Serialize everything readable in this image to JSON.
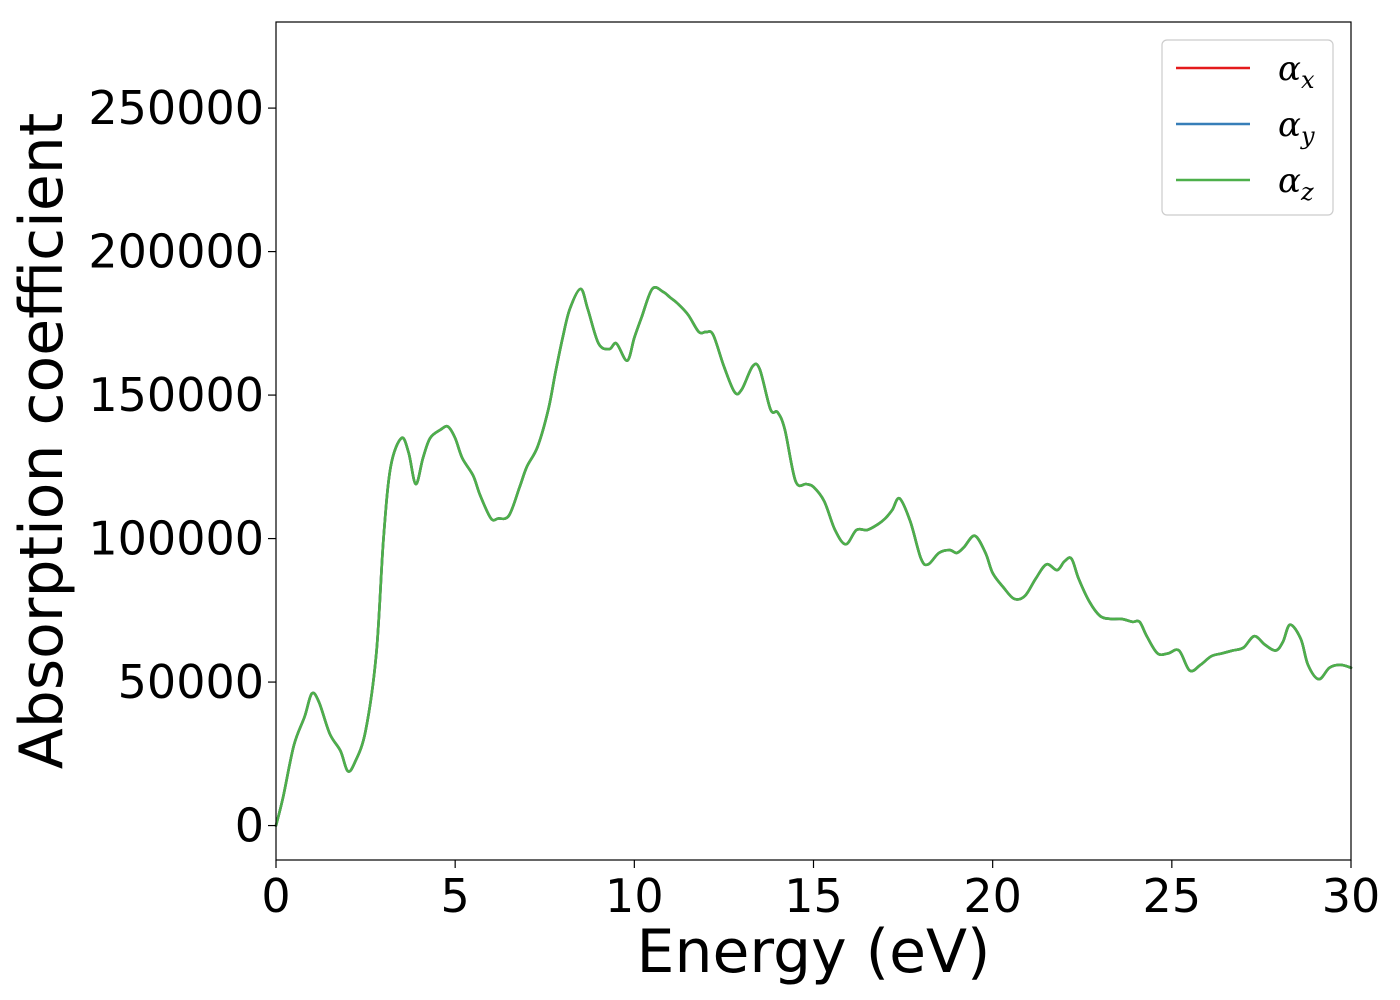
{
  "chart_data": {
    "type": "line",
    "title": "",
    "xlabel": "Energy (eV)",
    "ylabel": "Absorption coefficient",
    "xlim": [
      0,
      30
    ],
    "ylim": [
      -12000,
      280000
    ],
    "xticks": [
      0,
      5,
      10,
      15,
      20,
      25,
      30
    ],
    "yticks": [
      0,
      50000,
      100000,
      150000,
      200000,
      250000
    ],
    "grid": false,
    "legend_position": "top-right",
    "colors": {
      "alpha_x": "#e41a1c",
      "alpha_y": "#377eb8",
      "alpha_z": "#4daf4a"
    },
    "x": [
      0,
      0.2,
      0.5,
      0.8,
      1.0,
      1.2,
      1.5,
      1.8,
      2.0,
      2.2,
      2.5,
      2.8,
      3.0,
      3.2,
      3.5,
      3.7,
      3.9,
      4.1,
      4.3,
      4.6,
      4.8,
      5.0,
      5.2,
      5.5,
      5.7,
      6.0,
      6.2,
      6.5,
      6.8,
      7.0,
      7.3,
      7.6,
      7.8,
      8.0,
      8.2,
      8.5,
      8.7,
      9.0,
      9.3,
      9.5,
      9.8,
      10.0,
      10.2,
      10.5,
      10.8,
      11.0,
      11.2,
      11.5,
      11.8,
      12.0,
      12.2,
      12.5,
      12.8,
      13.0,
      13.3,
      13.5,
      13.8,
      14.0,
      14.2,
      14.5,
      14.8,
      15.0,
      15.3,
      15.6,
      15.9,
      16.2,
      16.5,
      16.8,
      17.0,
      17.2,
      17.4,
      17.7,
      18.0,
      18.2,
      18.5,
      18.8,
      19.0,
      19.2,
      19.5,
      19.8,
      20.0,
      20.3,
      20.6,
      20.9,
      21.2,
      21.5,
      21.8,
      22.0,
      22.2,
      22.4,
      22.7,
      23.0,
      23.3,
      23.6,
      23.9,
      24.1,
      24.3,
      24.6,
      24.9,
      25.2,
      25.5,
      25.8,
      26.1,
      26.4,
      26.7,
      27.0,
      27.3,
      27.6,
      27.9,
      28.1,
      28.3,
      28.6,
      28.8,
      29.1,
      29.4,
      29.7,
      30.0
    ],
    "series": [
      {
        "name": "α_x",
        "values": [
          0,
          10000,
          28000,
          38000,
          46000,
          43000,
          32000,
          26000,
          19000,
          22000,
          33000,
          60000,
          100000,
          125000,
          135000,
          130000,
          119000,
          128000,
          135000,
          138000,
          139000,
          135000,
          128000,
          122000,
          115000,
          107000,
          107000,
          108000,
          118000,
          125000,
          132000,
          145000,
          158000,
          170000,
          180000,
          187000,
          180000,
          168000,
          166000,
          168000,
          162000,
          170000,
          177000,
          187000,
          186000,
          184000,
          182000,
          178000,
          172000,
          172000,
          171000,
          160000,
          151000,
          152000,
          160000,
          159000,
          145000,
          144000,
          138000,
          120000,
          119000,
          118000,
          113000,
          103000,
          98000,
          103000,
          103000,
          105000,
          107000,
          110000,
          114000,
          106000,
          93000,
          91000,
          95000,
          96000,
          95000,
          97000,
          101000,
          95000,
          88000,
          83000,
          79000,
          80000,
          86000,
          91000,
          89000,
          92000,
          93000,
          86000,
          78000,
          73000,
          72000,
          72000,
          71000,
          71000,
          66000,
          60000,
          60000,
          61000,
          54000,
          56000,
          59000,
          60000,
          61000,
          62000,
          66000,
          63000,
          61000,
          64000,
          70000,
          65000,
          56000,
          51000,
          55000,
          56000,
          55000
        ]
      },
      {
        "name": "α_y",
        "values": [
          0,
          10000,
          28000,
          38000,
          46000,
          43000,
          32000,
          26000,
          19000,
          22000,
          33000,
          60000,
          100000,
          125000,
          135000,
          130000,
          119000,
          128000,
          135000,
          138000,
          139000,
          135000,
          128000,
          122000,
          115000,
          107000,
          107000,
          108000,
          118000,
          125000,
          132000,
          145000,
          158000,
          170000,
          180000,
          187000,
          180000,
          168000,
          166000,
          168000,
          162000,
          170000,
          177000,
          187000,
          186000,
          184000,
          182000,
          178000,
          172000,
          172000,
          171000,
          160000,
          151000,
          152000,
          160000,
          159000,
          145000,
          144000,
          138000,
          120000,
          119000,
          118000,
          113000,
          103000,
          98000,
          103000,
          103000,
          105000,
          107000,
          110000,
          114000,
          106000,
          93000,
          91000,
          95000,
          96000,
          95000,
          97000,
          101000,
          95000,
          88000,
          83000,
          79000,
          80000,
          86000,
          91000,
          89000,
          92000,
          93000,
          86000,
          78000,
          73000,
          72000,
          72000,
          71000,
          71000,
          66000,
          60000,
          60000,
          61000,
          54000,
          56000,
          59000,
          60000,
          61000,
          62000,
          66000,
          63000,
          61000,
          64000,
          70000,
          65000,
          56000,
          51000,
          55000,
          56000,
          55000
        ]
      },
      {
        "name": "α_z",
        "values": [
          0,
          10000,
          28000,
          38000,
          46000,
          43000,
          32000,
          26000,
          19000,
          22000,
          33000,
          60000,
          100000,
          125000,
          135000,
          130000,
          119000,
          128000,
          135000,
          138000,
          139000,
          135000,
          128000,
          122000,
          115000,
          107000,
          107000,
          108000,
          118000,
          125000,
          132000,
          145000,
          158000,
          170000,
          180000,
          187000,
          180000,
          168000,
          166000,
          168000,
          162000,
          170000,
          177000,
          187000,
          186000,
          184000,
          182000,
          178000,
          172000,
          172000,
          171000,
          160000,
          151000,
          152000,
          160000,
          159000,
          145000,
          144000,
          138000,
          120000,
          119000,
          118000,
          113000,
          103000,
          98000,
          103000,
          103000,
          105000,
          107000,
          110000,
          114000,
          106000,
          93000,
          91000,
          95000,
          96000,
          95000,
          97000,
          101000,
          95000,
          88000,
          83000,
          79000,
          80000,
          86000,
          91000,
          89000,
          92000,
          93000,
          86000,
          78000,
          73000,
          72000,
          72000,
          71000,
          71000,
          66000,
          60000,
          60000,
          61000,
          54000,
          56000,
          59000,
          60000,
          61000,
          62000,
          66000,
          63000,
          61000,
          64000,
          70000,
          65000,
          56000,
          51000,
          55000,
          56000,
          55000
        ]
      }
    ],
    "legend": [
      {
        "base": "α",
        "sub": "x",
        "series": "α_x"
      },
      {
        "base": "α",
        "sub": "y",
        "series": "α_y"
      },
      {
        "base": "α",
        "sub": "z",
        "series": "α_z"
      }
    ]
  }
}
